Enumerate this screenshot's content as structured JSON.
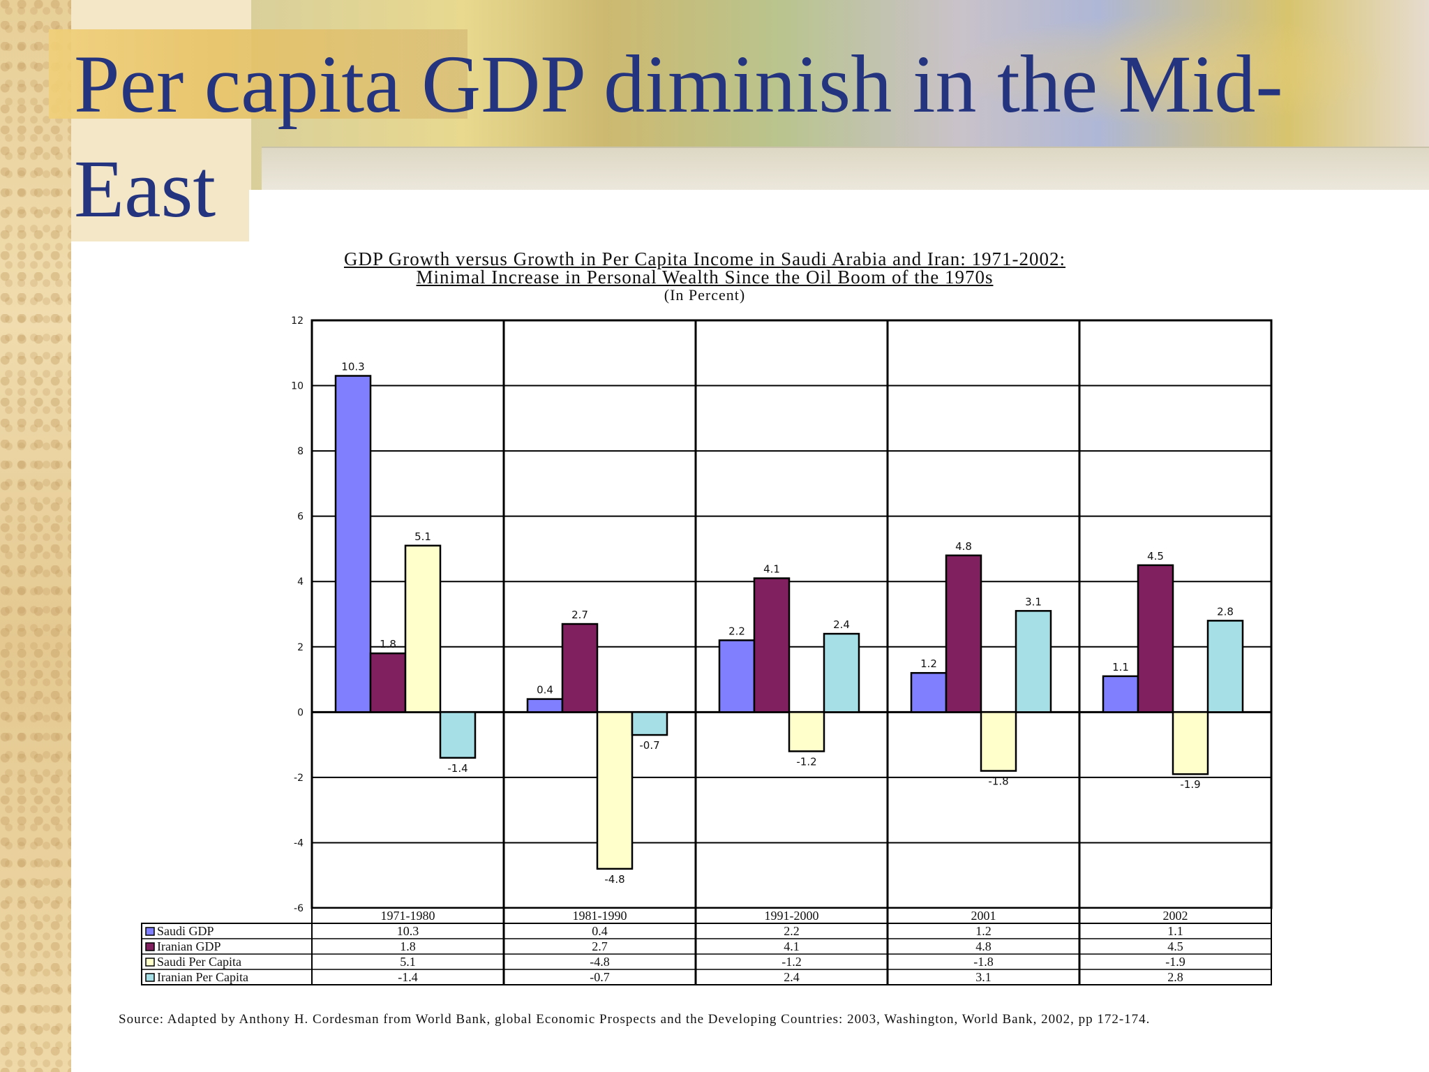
{
  "slide": {
    "title": "Per capita GDP diminish in the Mid-East"
  },
  "chart_data": {
    "type": "bar",
    "title_line1": "GDP Growth versus Growth in Per Capita Income in Saudi Arabia and Iran: 1971-2002:",
    "title_line2": "Minimal Increase in Personal Wealth Since the Oil Boom of the 1970s",
    "subtitle": "(In Percent)",
    "categories": [
      "1971-1980",
      "1981-1990",
      "1991-2000",
      "2001",
      "2002"
    ],
    "series": [
      {
        "name": "Saudi GDP",
        "color": "#8080ff",
        "values": [
          10.3,
          0.4,
          2.2,
          1.2,
          1.1
        ]
      },
      {
        "name": "Iranian GDP",
        "color": "#80205f",
        "values": [
          1.8,
          2.7,
          4.1,
          4.8,
          4.5
        ]
      },
      {
        "name": "Saudi Per Capita",
        "color": "#ffffcc",
        "values": [
          5.1,
          -4.8,
          -1.2,
          -1.8,
          -1.9
        ]
      },
      {
        "name": "Iranian Per Capita",
        "color": "#a6e0e6",
        "values": [
          -1.4,
          -0.7,
          2.4,
          3.1,
          2.8
        ]
      }
    ],
    "table_values": [
      [
        "10.3",
        "0.4",
        "2.2",
        "1.2",
        "1.1"
      ],
      [
        "1.8",
        "2.7",
        "4.1",
        "4.8",
        "4.5"
      ],
      [
        "5.1",
        "-4.8",
        "-1.2",
        "-1.8",
        "-1.9"
      ],
      [
        "-1.4",
        "-0.7",
        "2.4",
        "3.1",
        "2.8"
      ]
    ],
    "ylim": [
      -6,
      12
    ],
    "yticks": [
      12,
      10,
      8,
      6,
      4,
      2,
      0,
      -2,
      -4,
      -6
    ],
    "grid": true,
    "legend": "data-table"
  },
  "source": "Source: Adapted by Anthony H. Cordesman from World Bank, global Economic Prospects and the Developing Countries: 2003, Washington, World Bank, 2002, pp 172-174."
}
